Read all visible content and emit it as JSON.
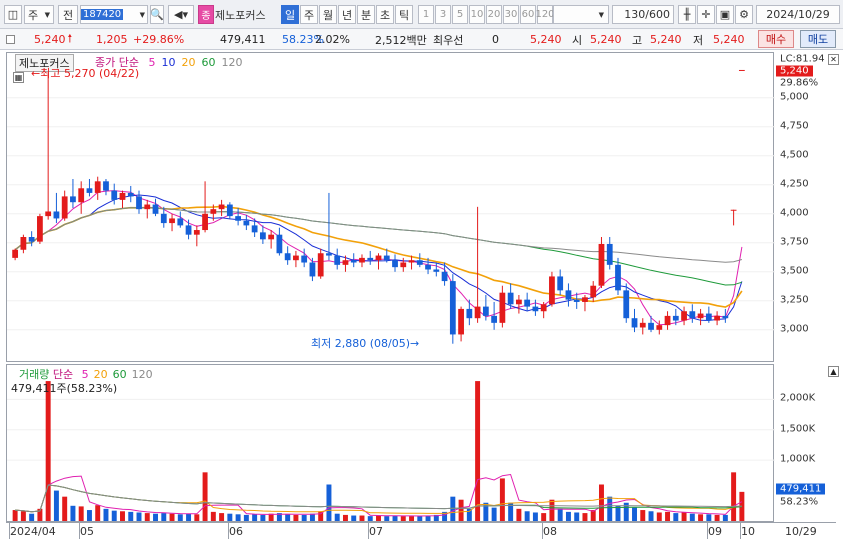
{
  "toolbar": {
    "market": "주",
    "view": "전",
    "code": "187420",
    "badge": "종",
    "name": "제노포커스",
    "periods": [
      "일",
      "주",
      "월",
      "년",
      "분",
      "초",
      "틱"
    ],
    "minutes": [
      "1",
      "3",
      "5",
      "10",
      "20",
      "30",
      "60",
      "120"
    ],
    "count": "130",
    "count_total": "/600",
    "date": "2024/10/29"
  },
  "quote": {
    "price": "5,240",
    "change": "1,205",
    "change_pct": "+29.86%",
    "volume": "479,411",
    "vol_ratio": "58.23%",
    "turnover_pct": "2.02%",
    "amount": "2,512백만",
    "priority_label": "최우선",
    "priority_value": "0",
    "priority_price": "5,240",
    "open_label": "시",
    "open": "5,240",
    "high_label": "고",
    "high": "5,240",
    "low_label": "저",
    "low": "5,240",
    "buy": "매수",
    "sell": "매도"
  },
  "price_pane": {
    "name": "제노포커스",
    "legend_title": "종가 단순",
    "ma": [
      "5",
      "10",
      "20",
      "60",
      "120"
    ],
    "ma_colors": [
      "#e020b0",
      "#1a2fd6",
      "#f2a10a",
      "#1e9a3a",
      "#8a8a8a"
    ],
    "high_note": "최고 5,270 (04/22)",
    "low_note": "최저 2,880 (08/05)",
    "lc": "LC:81.94",
    "last_price": "5,240",
    "last_pct": "29.86%",
    "ticks": [
      "5,000",
      "4,750",
      "4,500",
      "4,250",
      "4,000",
      "3,750",
      "3,500",
      "3,250",
      "3,000"
    ]
  },
  "vol_pane": {
    "legend_title": "거래량",
    "legend_sub": "단순",
    "ma": [
      "5",
      "20",
      "60",
      "120"
    ],
    "ma_colors": [
      "#e020b0",
      "#f2a10a",
      "#1e9a3a",
      "#8a8a8a"
    ],
    "info": "479,411주(58.23%)",
    "last_volume": "479,411",
    "last_pct": "58.23%",
    "ticks": [
      "2,000K",
      "1,500K",
      "1,000K"
    ]
  },
  "xaxis": [
    "2024/04",
    "05",
    "06",
    "07",
    "08",
    "09",
    "10",
    "10/29"
  ],
  "colors": {
    "up": "#e31b1b",
    "down": "#1560d8",
    "accent": "#2f6fd6"
  },
  "chart_data": {
    "type": "candlestick",
    "y_range": [
      2800,
      5300
    ],
    "volume_max_k": 2400,
    "candles": [
      [
        3620,
        3700,
        3600,
        3690,
        180
      ],
      [
        3690,
        3820,
        3660,
        3800,
        160
      ],
      [
        3800,
        3850,
        3720,
        3760,
        120
      ],
      [
        3760,
        4000,
        3740,
        3980,
        200
      ],
      [
        3980,
        5270,
        3950,
        4020,
        2300
      ],
      [
        4020,
        4180,
        3920,
        3960,
        500
      ],
      [
        3960,
        4200,
        3940,
        4150,
        400
      ],
      [
        4150,
        4300,
        4050,
        4100,
        250
      ],
      [
        4100,
        4280,
        4000,
        4220,
        240
      ],
      [
        4220,
        4300,
        4150,
        4180,
        180
      ],
      [
        4180,
        4320,
        4120,
        4280,
        260
      ],
      [
        4280,
        4300,
        4160,
        4200,
        200
      ],
      [
        4200,
        4260,
        4080,
        4120,
        170
      ],
      [
        4120,
        4200,
        4050,
        4180,
        160
      ],
      [
        4180,
        4240,
        4100,
        4150,
        150
      ],
      [
        4150,
        4200,
        4000,
        4040,
        140
      ],
      [
        4040,
        4120,
        3960,
        4080,
        130
      ],
      [
        4080,
        4130,
        3980,
        4000,
        120
      ],
      [
        4000,
        4060,
        3880,
        3920,
        130
      ],
      [
        3920,
        4000,
        3850,
        3960,
        120
      ],
      [
        3960,
        4020,
        3880,
        3900,
        110
      ],
      [
        3900,
        3950,
        3780,
        3820,
        120
      ],
      [
        3820,
        3900,
        3720,
        3860,
        110
      ],
      [
        3860,
        4280,
        3840,
        4000,
        800
      ],
      [
        4000,
        4080,
        3940,
        4040,
        150
      ],
      [
        4040,
        4120,
        3980,
        4080,
        130
      ],
      [
        4080,
        4100,
        3960,
        3980,
        120
      ],
      [
        3980,
        4050,
        3900,
        3940,
        110
      ],
      [
        3940,
        3990,
        3860,
        3900,
        100
      ],
      [
        3900,
        3960,
        3800,
        3840,
        110
      ],
      [
        3840,
        3900,
        3740,
        3780,
        100
      ],
      [
        3780,
        3860,
        3700,
        3820,
        120
      ],
      [
        3820,
        3880,
        3640,
        3660,
        130
      ],
      [
        3660,
        3720,
        3560,
        3600,
        110
      ],
      [
        3600,
        3680,
        3540,
        3640,
        100
      ],
      [
        3640,
        3700,
        3540,
        3580,
        100
      ],
      [
        3580,
        3620,
        3420,
        3460,
        120
      ],
      [
        3460,
        3700,
        3440,
        3660,
        160
      ],
      [
        3660,
        4180,
        3600,
        3640,
        600
      ],
      [
        3640,
        3700,
        3520,
        3560,
        120
      ],
      [
        3560,
        3640,
        3500,
        3600,
        100
      ],
      [
        3600,
        3660,
        3540,
        3580,
        90
      ],
      [
        3580,
        3650,
        3540,
        3620,
        90
      ],
      [
        3620,
        3680,
        3560,
        3600,
        80
      ],
      [
        3600,
        3660,
        3520,
        3640,
        90
      ],
      [
        3640,
        3700,
        3580,
        3600,
        80
      ],
      [
        3600,
        3650,
        3500,
        3540,
        90
      ],
      [
        3540,
        3620,
        3500,
        3580,
        80
      ],
      [
        3580,
        3640,
        3520,
        3600,
        80
      ],
      [
        3600,
        3660,
        3540,
        3560,
        80
      ],
      [
        3560,
        3620,
        3480,
        3520,
        90
      ],
      [
        3520,
        3580,
        3460,
        3500,
        100
      ],
      [
        3500,
        3580,
        3380,
        3420,
        150
      ],
      [
        3420,
        3480,
        2880,
        2960,
        400
      ],
      [
        2960,
        3200,
        2900,
        3180,
        350
      ],
      [
        3180,
        3260,
        3040,
        3100,
        200
      ],
      [
        3100,
        4060,
        3060,
        3200,
        2300
      ],
      [
        3200,
        3300,
        3080,
        3120,
        300
      ],
      [
        3120,
        3240,
        3000,
        3060,
        220
      ],
      [
        3060,
        3380,
        3020,
        3320,
        700
      ],
      [
        3320,
        3400,
        3180,
        3220,
        300
      ],
      [
        3220,
        3300,
        3140,
        3260,
        200
      ],
      [
        3260,
        3320,
        3160,
        3200,
        160
      ],
      [
        3200,
        3260,
        3120,
        3160,
        140
      ],
      [
        3160,
        3240,
        3100,
        3220,
        130
      ],
      [
        3220,
        3500,
        3200,
        3460,
        350
      ],
      [
        3460,
        3520,
        3300,
        3340,
        200
      ],
      [
        3340,
        3400,
        3200,
        3260,
        150
      ],
      [
        3260,
        3320,
        3180,
        3240,
        140
      ],
      [
        3240,
        3300,
        3160,
        3280,
        130
      ],
      [
        3280,
        3420,
        3240,
        3380,
        180
      ],
      [
        3380,
        3800,
        3360,
        3740,
        600
      ],
      [
        3740,
        3800,
        3520,
        3560,
        400
      ],
      [
        3560,
        3620,
        3300,
        3340,
        250
      ],
      [
        3340,
        3400,
        3060,
        3100,
        300
      ],
      [
        3100,
        3180,
        2980,
        3020,
        220
      ],
      [
        3020,
        3100,
        2960,
        3060,
        180
      ],
      [
        3060,
        3120,
        2980,
        3000,
        160
      ],
      [
        3000,
        3080,
        2960,
        3040,
        140
      ],
      [
        3040,
        3160,
        3000,
        3120,
        150
      ],
      [
        3120,
        3180,
        3040,
        3080,
        130
      ],
      [
        3080,
        3200,
        3040,
        3160,
        140
      ],
      [
        3160,
        3220,
        3060,
        3100,
        120
      ],
      [
        3100,
        3180,
        3040,
        3140,
        110
      ],
      [
        3140,
        3200,
        3060,
        3080,
        110
      ],
      [
        3080,
        3160,
        3040,
        3120,
        100
      ],
      [
        3120,
        3180,
        3060,
        3100,
        100
      ],
      [
        4035,
        4035,
        3900,
        4035,
        800
      ],
      [
        5240,
        5240,
        5240,
        5240,
        479
      ]
    ]
  }
}
